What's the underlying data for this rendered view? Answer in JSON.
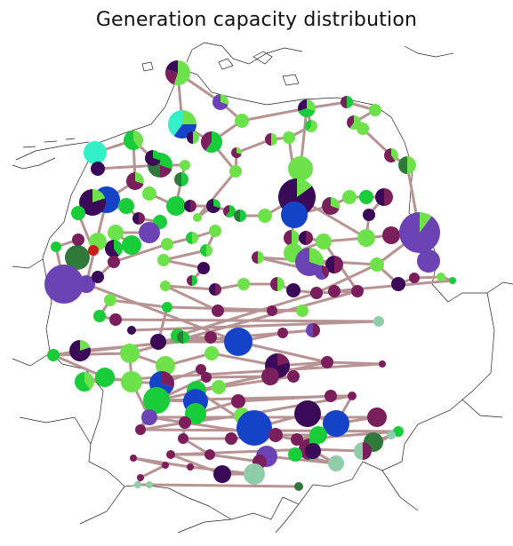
{
  "chart_data": {
    "type": "map",
    "title": "Generation capacity distribution",
    "legend": "none",
    "colors": {
      "border": "#222222",
      "line": "#b79393",
      "wind_onshore": "#6ee24a",
      "solar": "#19cc3a",
      "biomass": "#7b1e5c",
      "lignite": "#3a0a58",
      "hard_coal": "#6b43b5",
      "gas": "#1543c8",
      "nuclear": "#2f7a3a",
      "offshore": "#34f0c8",
      "hydro": "#8fcca8",
      "oil": "#cc1a1a"
    }
  }
}
